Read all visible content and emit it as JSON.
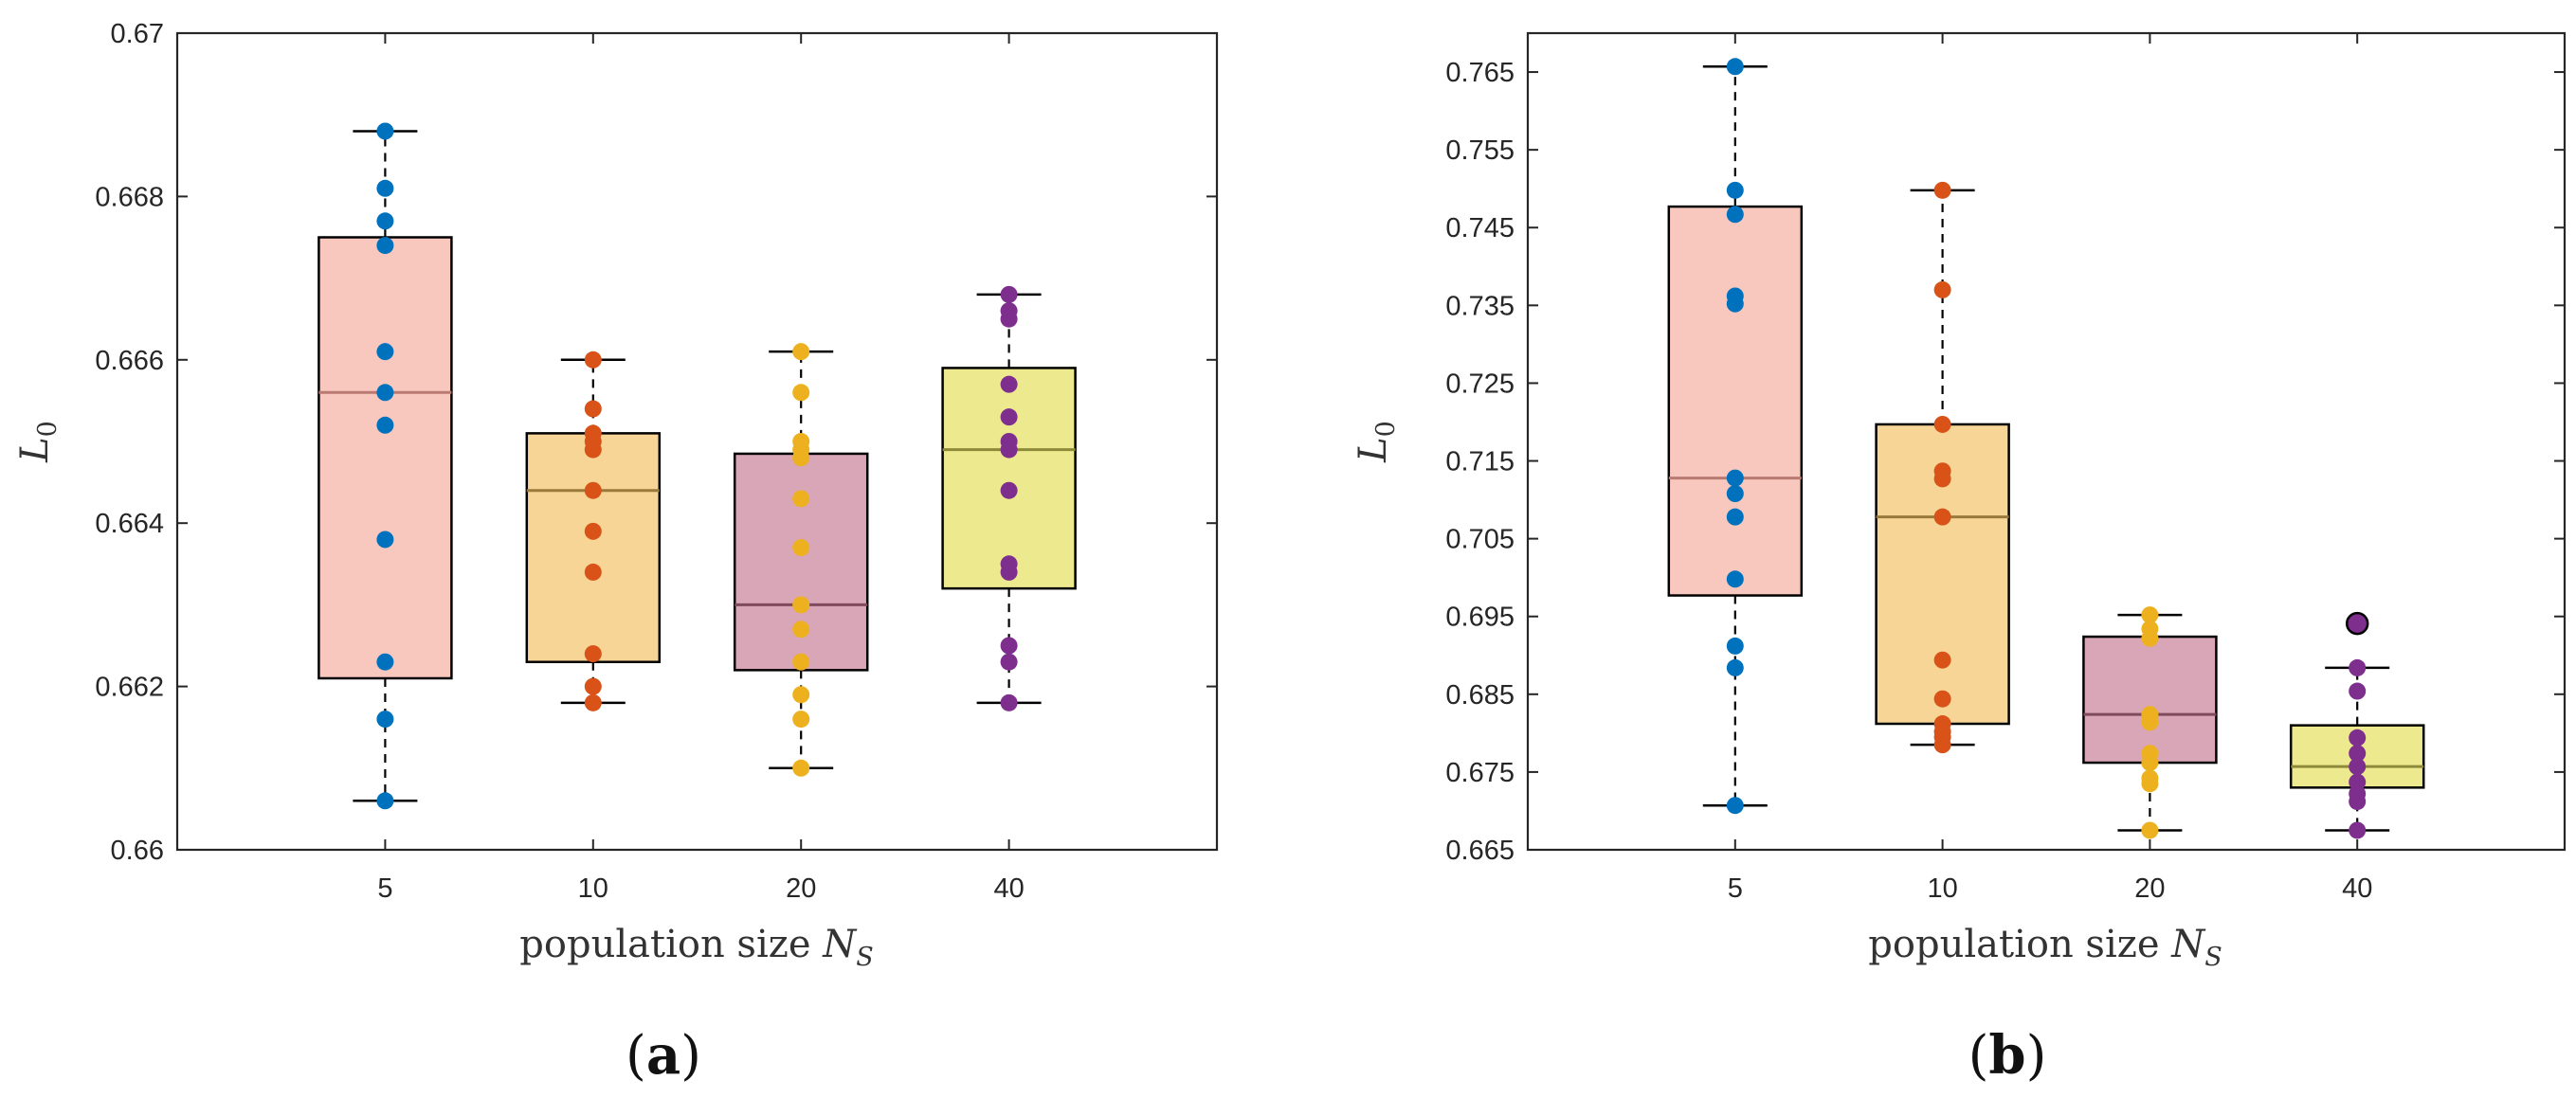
{
  "panels": [
    {
      "label_open": "(",
      "label_letter": "a",
      "label_close": ")",
      "ylabel_main": "L",
      "ylabel_sub": "0",
      "xlabel_main": "population size ",
      "xlabel_var": "N",
      "xlabel_sub": "S"
    },
    {
      "label_open": "(",
      "label_letter": "b",
      "label_close": ")",
      "ylabel_main": "L",
      "ylabel_sub": "0",
      "xlabel_main": "population size ",
      "xlabel_var": "N",
      "xlabel_sub": "S"
    }
  ],
  "chart_data": [
    {
      "type": "box",
      "panel": "a",
      "categories": [
        "5",
        "10",
        "20",
        "40"
      ],
      "xlabel": "population size N_S",
      "ylabel": "L_0",
      "ylim": [
        0.66,
        0.67
      ],
      "yticks": [
        0.66,
        0.662,
        0.664,
        0.666,
        0.668,
        0.67
      ],
      "ytick_labels": [
        "0.66",
        "0.662",
        "0.664",
        "0.666",
        "0.668",
        "0.67"
      ],
      "grid": false,
      "colors": {
        "box_fills": [
          "#f8c7be",
          "#f7d596",
          "#d9a6b8",
          "#ece98e"
        ],
        "medians": [
          "#b97a72",
          "#9a7a3c",
          "#7e4a5c",
          "#8c8a3a"
        ],
        "points": [
          "#0072bd",
          "#d95319",
          "#edb120",
          "#7e2f8e"
        ]
      },
      "boxes": [
        {
          "category": "5",
          "whisker_low": 0.6606,
          "q1": 0.6621,
          "median": 0.6656,
          "q3": 0.6675,
          "whisker_high": 0.6688
        },
        {
          "category": "10",
          "whisker_low": 0.6618,
          "q1": 0.6623,
          "median": 0.6644,
          "q3": 0.6651,
          "whisker_high": 0.666
        },
        {
          "category": "20",
          "whisker_low": 0.661,
          "q1": 0.6622,
          "median": 0.663,
          "q3": 0.66485,
          "whisker_high": 0.6661
        },
        {
          "category": "40",
          "whisker_low": 0.6618,
          "q1": 0.6632,
          "median": 0.6649,
          "q3": 0.6659,
          "whisker_high": 0.6668
        }
      ],
      "points": [
        {
          "category": "5",
          "values": [
            0.6688,
            0.6681,
            0.6677,
            0.6674,
            0.6661,
            0.6656,
            0.6652,
            0.6638,
            0.6623,
            0.6616,
            0.6606
          ]
        },
        {
          "category": "10",
          "values": [
            0.666,
            0.6654,
            0.6651,
            0.665,
            0.6649,
            0.6644,
            0.6639,
            0.6634,
            0.6624,
            0.662,
            0.6618
          ]
        },
        {
          "category": "20",
          "values": [
            0.6661,
            0.6656,
            0.665,
            0.6649,
            0.6648,
            0.6643,
            0.6637,
            0.663,
            0.6627,
            0.6623,
            0.6619,
            0.6616,
            0.661
          ]
        },
        {
          "category": "40",
          "values": [
            0.6668,
            0.6666,
            0.6665,
            0.6657,
            0.6653,
            0.665,
            0.6649,
            0.6644,
            0.6635,
            0.6634,
            0.6625,
            0.6623,
            0.6618
          ]
        }
      ],
      "outliers": []
    },
    {
      "type": "box",
      "panel": "b",
      "categories": [
        "5",
        "10",
        "20",
        "40"
      ],
      "xlabel": "population size N_S",
      "ylabel": "L_0",
      "ylim": [
        0.665,
        0.77
      ],
      "yticks": [
        0.665,
        0.675,
        0.685,
        0.695,
        0.705,
        0.715,
        0.725,
        0.735,
        0.745,
        0.755,
        0.765
      ],
      "ytick_labels": [
        "0.665",
        "0.675",
        "0.685",
        "0.695",
        "0.705",
        "0.715",
        "0.725",
        "0.735",
        "0.745",
        "0.755",
        "0.765"
      ],
      "grid": false,
      "colors": {
        "box_fills": [
          "#f8c7be",
          "#f7d596",
          "#d9a6b8",
          "#ece98e"
        ],
        "medians": [
          "#b97a72",
          "#9a7a3c",
          "#7e4a5c",
          "#8c8a3a"
        ],
        "points": [
          "#0072bd",
          "#d95319",
          "#edb120",
          "#7e2f8e"
        ]
      },
      "boxes": [
        {
          "category": "5",
          "whisker_low": 0.6707,
          "q1": 0.6977,
          "median": 0.7128,
          "q3": 0.7477,
          "whisker_high": 0.7657
        },
        {
          "category": "10",
          "whisker_low": 0.6785,
          "q1": 0.6812,
          "median": 0.7078,
          "q3": 0.7197,
          "whisker_high": 0.7498
        },
        {
          "category": "20",
          "whisker_low": 0.6675,
          "q1": 0.6762,
          "median": 0.6824,
          "q3": 0.6924,
          "whisker_high": 0.6952
        },
        {
          "category": "40",
          "whisker_low": 0.6675,
          "q1": 0.673,
          "median": 0.6757,
          "q3": 0.681,
          "whisker_high": 0.6884
        }
      ],
      "points": [
        {
          "category": "5",
          "values": [
            0.7657,
            0.7498,
            0.7467,
            0.7362,
            0.7352,
            0.7128,
            0.7108,
            0.7078,
            0.6998,
            0.6912,
            0.6884,
            0.6707
          ]
        },
        {
          "category": "10",
          "values": [
            0.7498,
            0.737,
            0.7197,
            0.7137,
            0.7127,
            0.7078,
            0.6894,
            0.6844,
            0.6812,
            0.6802,
            0.6795,
            0.6785
          ]
        },
        {
          "category": "20",
          "values": [
            0.6952,
            0.6934,
            0.6922,
            0.6824,
            0.6814,
            0.6774,
            0.6762,
            0.6742,
            0.6735,
            0.6675
          ]
        },
        {
          "category": "40",
          "values": [
            0.6884,
            0.6854,
            0.6794,
            0.6774,
            0.6757,
            0.6737,
            0.6722,
            0.6712,
            0.6675
          ]
        }
      ],
      "outliers": [
        {
          "category": "40",
          "value": 0.6941
        }
      ]
    }
  ]
}
